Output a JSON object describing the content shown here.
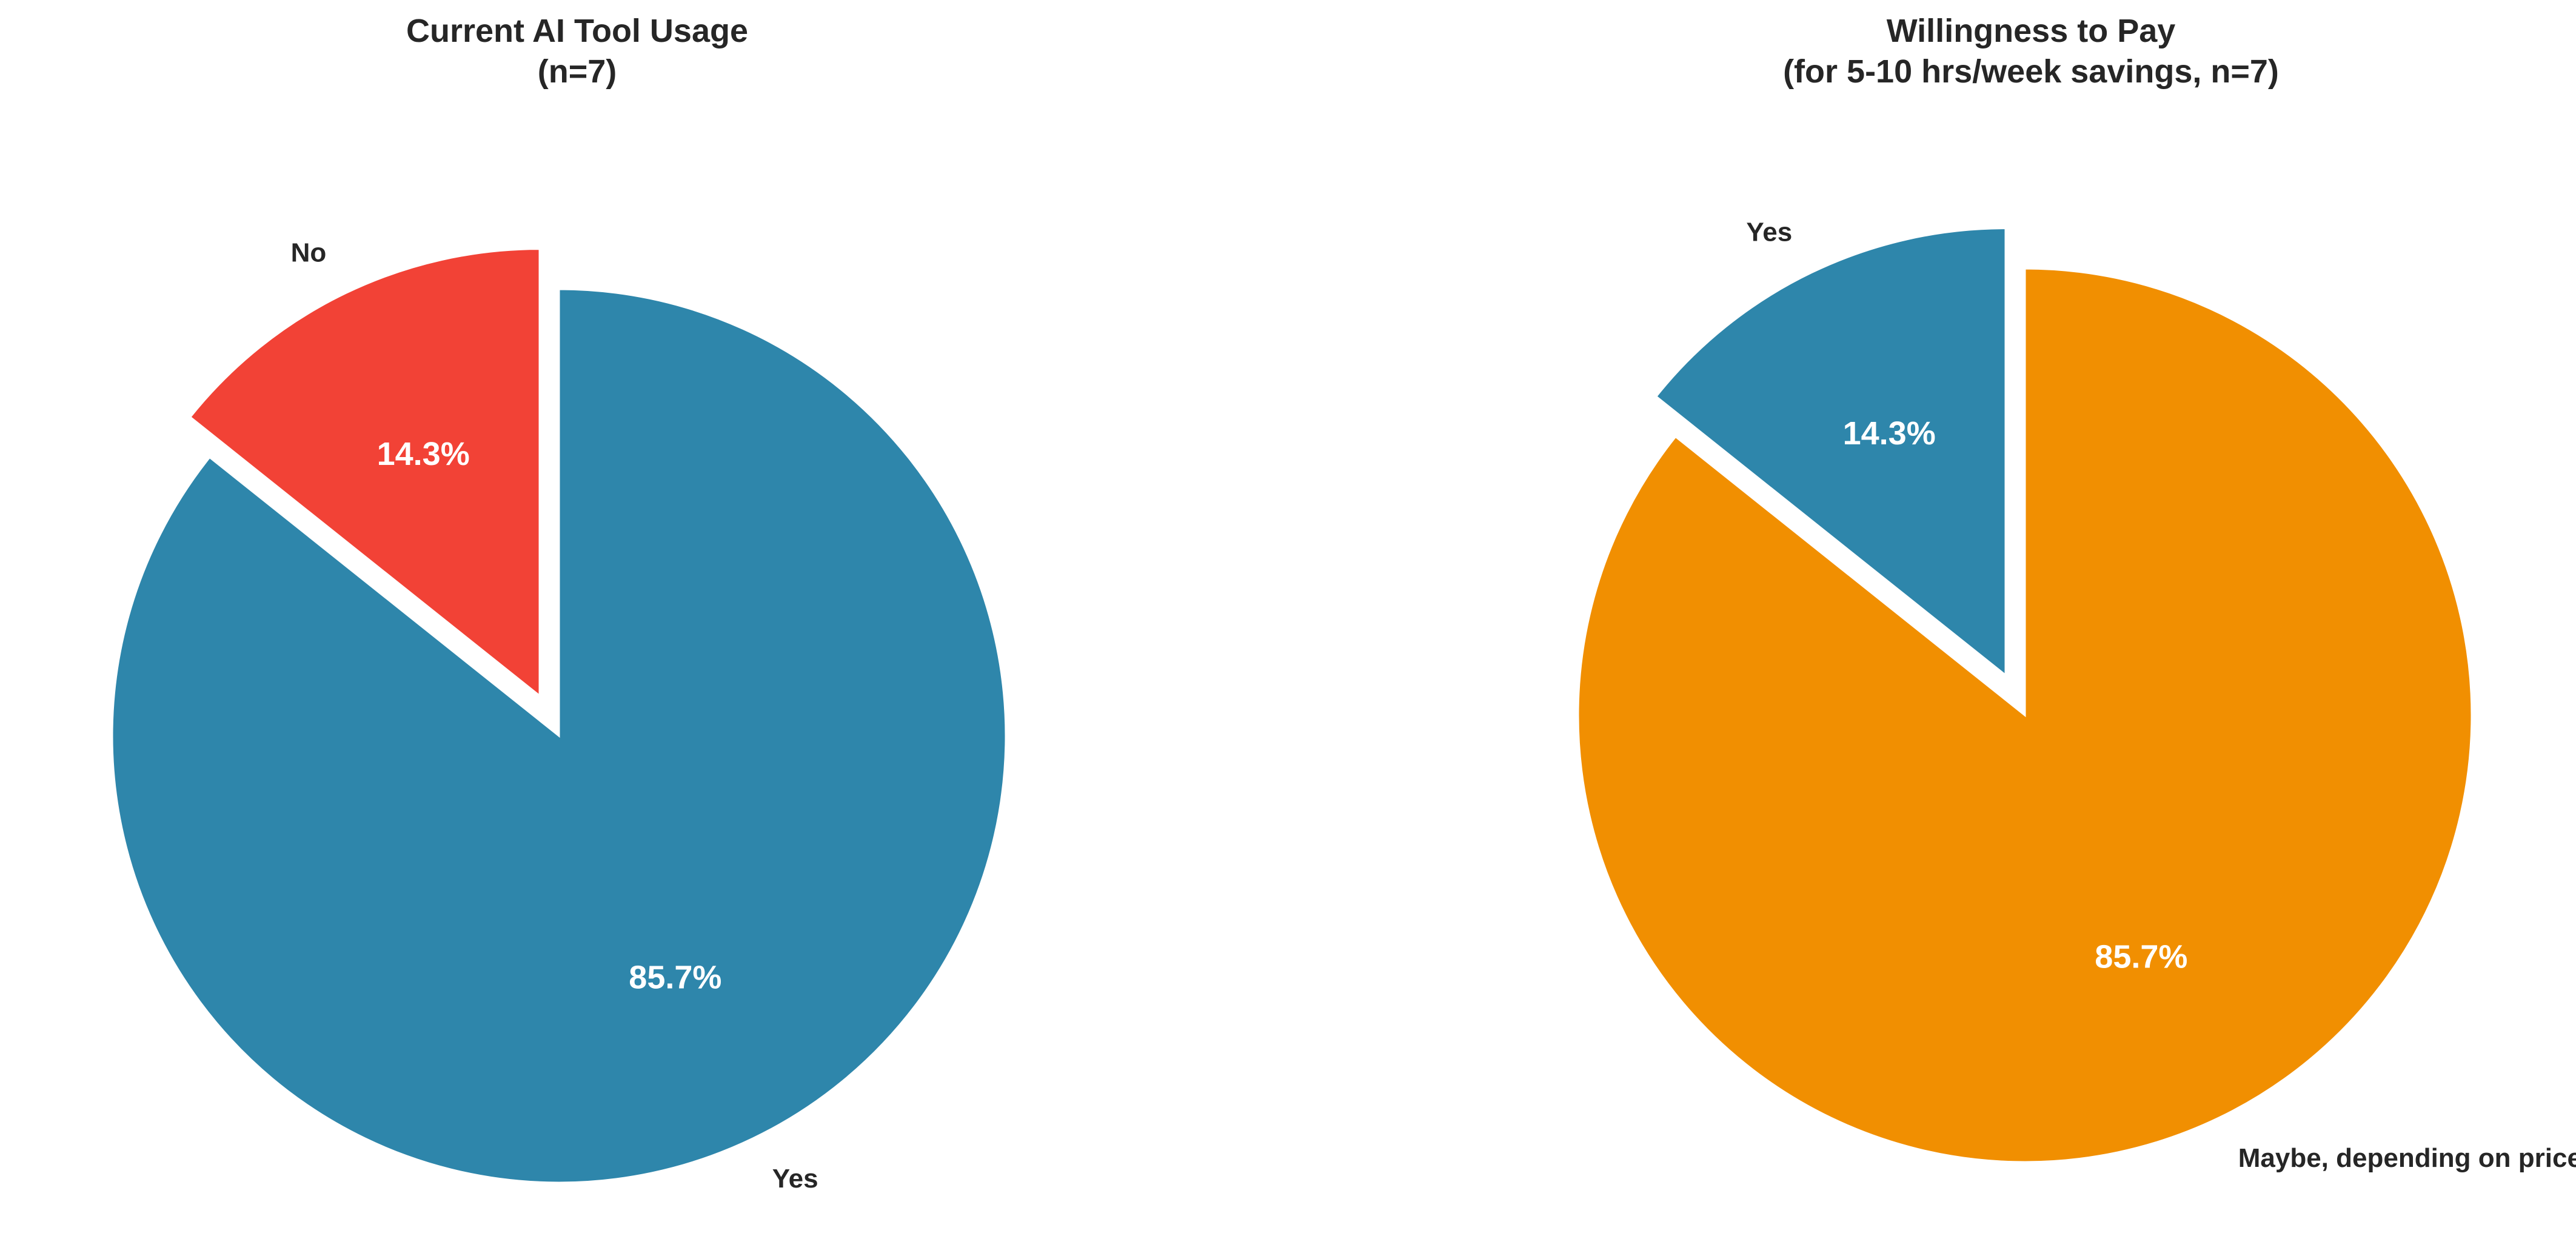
{
  "chart_data": [
    {
      "type": "pie",
      "title": "Current AI Tool Usage",
      "subtitle": "(n=7)",
      "slices": [
        {
          "label": "Yes",
          "value": 6,
          "percent_label": "85.7%",
          "color": "#2E86AB",
          "exploded": false
        },
        {
          "label": "No",
          "value": 1,
          "percent_label": "14.3%",
          "color": "#F24236",
          "exploded": true
        }
      ]
    },
    {
      "type": "pie",
      "title": "Willingness to Pay",
      "subtitle": "(for 5-10 hrs/week savings, n=7)",
      "slices": [
        {
          "label": "Maybe, depending on price",
          "value": 6,
          "percent_label": "85.7%",
          "color": "#F18F01",
          "exploded": false
        },
        {
          "label": "Yes",
          "value": 1,
          "percent_label": "14.3%",
          "color": "#2E86AB",
          "exploded": true
        }
      ]
    }
  ]
}
